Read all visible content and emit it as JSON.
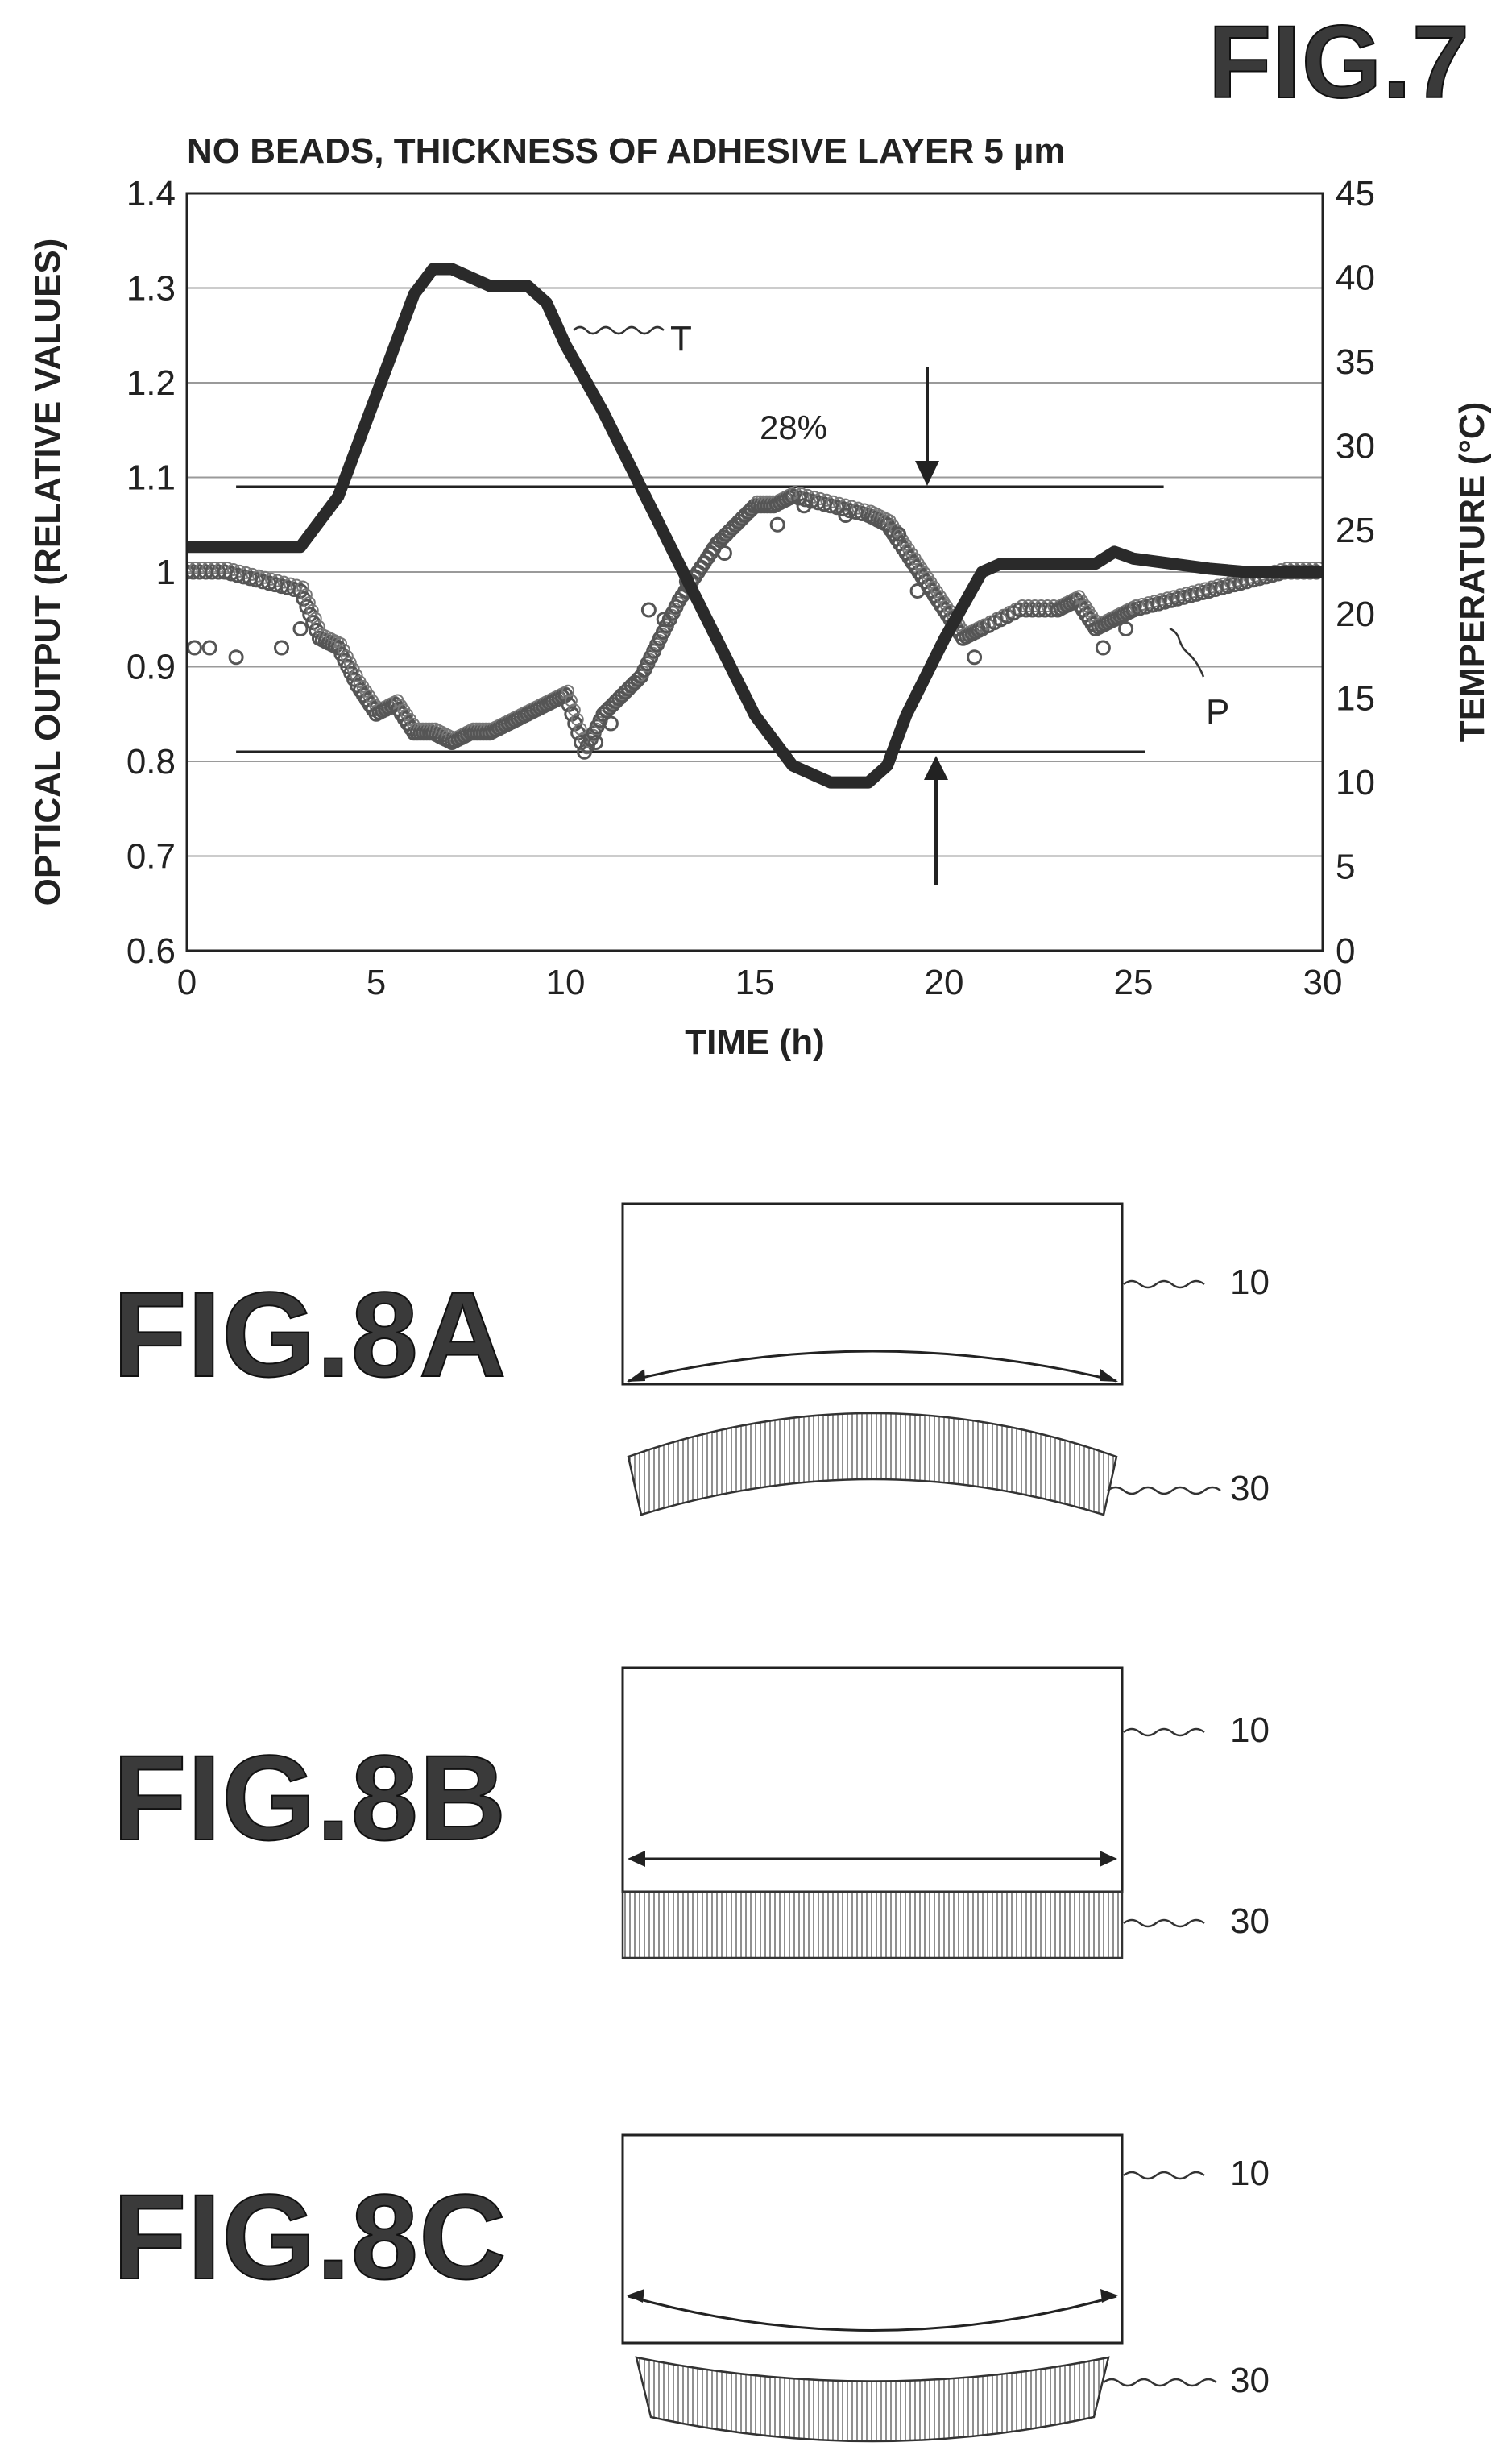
{
  "fig7": {
    "figure_label": "FIG.7",
    "title": "NO BEADS, THICKNESS OF ADHESIVE LAYER 5 µm",
    "annotations": {
      "percent": "28%",
      "temp_curve": "T",
      "output_curve": "P"
    }
  },
  "chart_data": {
    "type": "line",
    "title": "NO BEADS, THICKNESS OF ADHESIVE LAYER 5 µm",
    "xlabel": "TIME (h)",
    "ylabel": "OPTICAL OUTPUT (RELATIVE VALUES)",
    "y2label": "TEMPERATURE (°C)",
    "xlim": [
      0,
      30
    ],
    "ylim": [
      0.6,
      1.4
    ],
    "y2lim": [
      0,
      45
    ],
    "x_ticks": [
      "0",
      "5",
      "10",
      "15",
      "20",
      "25",
      "30"
    ],
    "y_ticks": [
      "0.6",
      "0.7",
      "0.8",
      "0.9",
      "1",
      "1.1",
      "1.2",
      "1.3",
      "1.4"
    ],
    "y2_ticks": [
      "0",
      "5",
      "10",
      "15",
      "20",
      "25",
      "30",
      "35",
      "40",
      "45"
    ],
    "grid": true,
    "reference_lines": [
      {
        "y": 1.09,
        "x_range": [
          1.3,
          25.8
        ]
      },
      {
        "y": 0.81,
        "x_range": [
          1.3,
          25.3
        ]
      }
    ],
    "series": [
      {
        "name": "T",
        "axis": "right",
        "style": "line",
        "points": [
          [
            0,
            24
          ],
          [
            3,
            24
          ],
          [
            4,
            27
          ],
          [
            5,
            33
          ],
          [
            6,
            39
          ],
          [
            6.5,
            40.5
          ],
          [
            7,
            40.5
          ],
          [
            8,
            39.5
          ],
          [
            9,
            39.5
          ],
          [
            9.5,
            38.5
          ],
          [
            10,
            36
          ],
          [
            11,
            32
          ],
          [
            12,
            27.5
          ],
          [
            13,
            23
          ],
          [
            14,
            18.5
          ],
          [
            15,
            14
          ],
          [
            16,
            11
          ],
          [
            17,
            10
          ],
          [
            18,
            10
          ],
          [
            18.5,
            11
          ],
          [
            19,
            14
          ],
          [
            20,
            18.5
          ],
          [
            21,
            22.5
          ],
          [
            21.5,
            23
          ],
          [
            22,
            23
          ],
          [
            24,
            23
          ],
          [
            24.5,
            23.7
          ],
          [
            25,
            23.3
          ],
          [
            26,
            23
          ],
          [
            27,
            22.7
          ],
          [
            28,
            22.5
          ],
          [
            30,
            22.5
          ]
        ]
      },
      {
        "name": "P",
        "axis": "left",
        "style": "markers",
        "points": [
          [
            0,
            1.0
          ],
          [
            1,
            1.0
          ],
          [
            2,
            0.99
          ],
          [
            3,
            0.98
          ],
          [
            3.5,
            0.93
          ],
          [
            4,
            0.92
          ],
          [
            4.5,
            0.88
          ],
          [
            5,
            0.85
          ],
          [
            5.5,
            0.86
          ],
          [
            6,
            0.83
          ],
          [
            6.5,
            0.83
          ],
          [
            7,
            0.82
          ],
          [
            7.5,
            0.83
          ],
          [
            8,
            0.83
          ],
          [
            8.5,
            0.84
          ],
          [
            9,
            0.85
          ],
          [
            9.5,
            0.86
          ],
          [
            10,
            0.87
          ],
          [
            10.5,
            0.81
          ],
          [
            11,
            0.85
          ],
          [
            11.5,
            0.87
          ],
          [
            12,
            0.89
          ],
          [
            12.5,
            0.93
          ],
          [
            13,
            0.97
          ],
          [
            13.5,
            1.0
          ],
          [
            14,
            1.03
          ],
          [
            14.5,
            1.05
          ],
          [
            15,
            1.07
          ],
          [
            15.5,
            1.07
          ],
          [
            16,
            1.08
          ],
          [
            17,
            1.07
          ],
          [
            18,
            1.06
          ],
          [
            18.5,
            1.05
          ],
          [
            19,
            1.02
          ],
          [
            19.5,
            0.99
          ],
          [
            20,
            0.96
          ],
          [
            20.5,
            0.93
          ],
          [
            21,
            0.94
          ],
          [
            22,
            0.96
          ],
          [
            23,
            0.96
          ],
          [
            23.5,
            0.97
          ],
          [
            24,
            0.94
          ],
          [
            24.5,
            0.95
          ],
          [
            25,
            0.96
          ],
          [
            26,
            0.97
          ],
          [
            27,
            0.98
          ],
          [
            28,
            0.99
          ],
          [
            29,
            1.0
          ],
          [
            30,
            1.0
          ]
        ],
        "scatter": [
          [
            0.2,
            0.92
          ],
          [
            0.6,
            0.92
          ],
          [
            1.3,
            0.91
          ],
          [
            2.5,
            0.92
          ],
          [
            3,
            0.94
          ],
          [
            10.8,
            0.82
          ],
          [
            11.2,
            0.84
          ],
          [
            12.2,
            0.96
          ],
          [
            12.6,
            0.95
          ],
          [
            13.2,
            0.99
          ],
          [
            14.2,
            1.02
          ],
          [
            15.6,
            1.05
          ],
          [
            16.3,
            1.07
          ],
          [
            17.4,
            1.06
          ],
          [
            18.8,
            1.04
          ],
          [
            19.3,
            0.98
          ],
          [
            20.8,
            0.91
          ],
          [
            24.2,
            0.92
          ],
          [
            24.8,
            0.94
          ]
        ]
      }
    ]
  },
  "fig8a": {
    "figure_label": "FIG.8A",
    "plate_ref": "10",
    "layer_ref": "30"
  },
  "fig8b": {
    "figure_label": "FIG.8B",
    "plate_ref": "10",
    "layer_ref": "30"
  },
  "fig8c": {
    "figure_label": "FIG.8C",
    "plate_ref": "10",
    "layer_ref": "30"
  }
}
